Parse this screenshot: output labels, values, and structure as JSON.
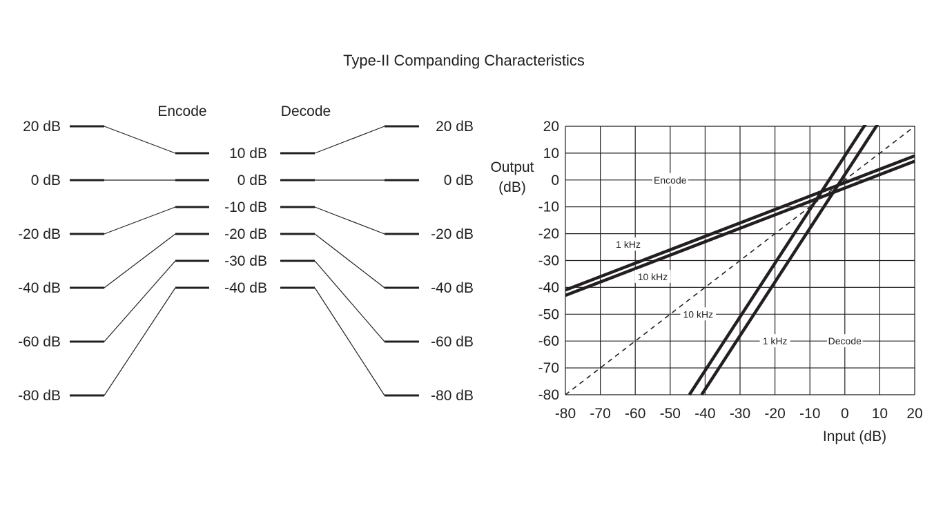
{
  "title": "Type-II Companding Characteristics",
  "left_diagram": {
    "encode_header": "Encode",
    "decode_header": "Decode",
    "input_levels": [
      "20 dB",
      "0 dB",
      "-20 dB",
      "-40 dB",
      "-60 dB",
      "-80 dB"
    ],
    "encoded_levels": [
      "10 dB",
      "0 dB",
      "-10 dB",
      "-20 dB",
      "-30 dB",
      "-40 dB"
    ],
    "output_levels": [
      "20 dB",
      "0 dB",
      "-20 dB",
      "-40 dB",
      "-60 dB",
      "-80 dB"
    ],
    "input_values": [
      20,
      0,
      -20,
      -40,
      -60,
      -80
    ],
    "encoded_values": [
      10,
      0,
      -10,
      -20,
      -30,
      -40
    ]
  },
  "chart_data": {
    "type": "line",
    "xlabel": "Input  (dB)",
    "ylabel_line1": "Output",
    "ylabel_line2": "(dB)",
    "xlim": [
      -80,
      20
    ],
    "ylim": [
      -80,
      20
    ],
    "grid": true,
    "x_ticks": [
      -80,
      -70,
      -60,
      -50,
      -40,
      -30,
      -20,
      -10,
      0,
      10,
      20
    ],
    "y_ticks": [
      20,
      10,
      0,
      -10,
      -20,
      -30,
      -40,
      -50,
      -60,
      -70,
      -80
    ],
    "x_tick_labels": [
      "-80",
      "-70",
      "-60",
      "-50",
      "-40",
      "-30",
      "-20",
      "-10",
      "0",
      "10",
      "20"
    ],
    "y_tick_labels": [
      "20",
      "10",
      "0",
      "-10",
      "-20",
      "-30",
      "-40",
      "-50",
      "-60",
      "-70",
      "-80"
    ],
    "series": [
      {
        "x": [
          -80,
          20
        ],
        "y": [
          -41,
          9
        ],
        "style": "thick"
      },
      {
        "x": [
          -80,
          20
        ],
        "y": [
          -43,
          7
        ],
        "style": "thick"
      },
      {
        "x": [
          -44.5,
          9
        ],
        "y": [
          -80,
          27
        ],
        "style": "thick"
      },
      {
        "x": [
          -41,
          9.5
        ],
        "y": [
          -80,
          21
        ],
        "style": "thick"
      },
      {
        "x": [
          -80,
          20
        ],
        "y": [
          -80,
          20
        ],
        "style": "dashed"
      }
    ],
    "annotations": [
      {
        "text": "Encode",
        "x": -50,
        "y": 0
      },
      {
        "text": "1 kHz",
        "x": -62,
        "y": -24
      },
      {
        "text": "10 kHz",
        "x": -55,
        "y": -36
      },
      {
        "text": "10 kHz",
        "x": -42,
        "y": -50
      },
      {
        "text": "1 kHz",
        "x": -20,
        "y": -60
      },
      {
        "text": "Decode",
        "x": 0,
        "y": -60
      }
    ]
  }
}
